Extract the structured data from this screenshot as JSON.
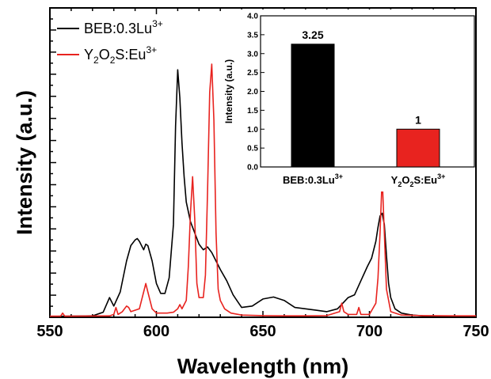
{
  "chart_data": [
    {
      "type": "line",
      "title": "",
      "xlabel": "Wavelength (nm)",
      "ylabel": "Intensity (a.u.)",
      "xlim": [
        550,
        750
      ],
      "ylim": [
        0,
        1.1
      ],
      "y_tick_labels_shown": false,
      "x_ticks": [
        550,
        600,
        650,
        700,
        750
      ],
      "x_tick_labels": [
        "550",
        "600",
        "650",
        "700",
        "750"
      ],
      "legend_position": "top-left",
      "series": [
        {
          "name": "BEB:0.3Lu3+",
          "legend_base": "BEB:0.3Lu",
          "legend_sup": "3+",
          "color": "#000000",
          "x": [
            550,
            570,
            575,
            578,
            580,
            583,
            586,
            588,
            590,
            591,
            592,
            594,
            595,
            596,
            598,
            600,
            602,
            604,
            606,
            608,
            609,
            610,
            611,
            612,
            613,
            614,
            616,
            618,
            620,
            622,
            624,
            626,
            628,
            630,
            633,
            636,
            640,
            645,
            650,
            655,
            660,
            665,
            670,
            675,
            680,
            685,
            690,
            693,
            696,
            699,
            701,
            703,
            704,
            705,
            706,
            707,
            708,
            709,
            710,
            712,
            715,
            720,
            725,
            730,
            740,
            750
          ],
          "y": [
            0.003,
            0.005,
            0.018,
            0.07,
            0.04,
            0.09,
            0.2,
            0.255,
            0.275,
            0.28,
            0.27,
            0.24,
            0.26,
            0.255,
            0.2,
            0.12,
            0.085,
            0.085,
            0.14,
            0.33,
            0.68,
            0.88,
            0.78,
            0.62,
            0.5,
            0.41,
            0.34,
            0.3,
            0.26,
            0.24,
            0.25,
            0.23,
            0.2,
            0.17,
            0.13,
            0.08,
            0.035,
            0.04,
            0.065,
            0.072,
            0.06,
            0.035,
            0.03,
            0.025,
            0.02,
            0.03,
            0.07,
            0.08,
            0.13,
            0.18,
            0.21,
            0.27,
            0.32,
            0.36,
            0.37,
            0.33,
            0.22,
            0.12,
            0.07,
            0.03,
            0.015,
            0.008,
            0.005,
            0.004,
            0.003,
            0.003
          ]
        },
        {
          "name": "Y2O2S:Eu3+",
          "legend_base": "Y",
          "legend_parts": [
            "Y",
            "2",
            "O",
            "2",
            "S:Eu",
            "3+"
          ],
          "color": "#e8231f",
          "x": [
            550,
            555,
            556,
            557,
            560,
            578,
            580,
            581,
            582,
            584,
            586,
            587,
            588,
            592,
            594,
            595,
            596,
            598,
            600,
            605,
            608,
            610,
            611,
            612,
            614,
            615,
            616,
            617,
            618,
            619,
            620,
            622,
            623,
            624,
            625,
            626,
            627,
            628,
            629,
            630,
            632,
            635,
            640,
            650,
            660,
            670,
            680,
            686,
            687,
            688,
            690,
            694,
            695,
            696,
            700,
            703,
            704,
            705,
            706,
            707,
            708,
            710,
            715,
            725,
            740,
            750
          ],
          "y": [
            0.004,
            0.004,
            0.015,
            0.004,
            0.004,
            0.005,
            0.01,
            0.035,
            0.01,
            0.02,
            0.04,
            0.035,
            0.02,
            0.03,
            0.09,
            0.12,
            0.09,
            0.03,
            0.015,
            0.015,
            0.018,
            0.03,
            0.045,
            0.03,
            0.06,
            0.18,
            0.37,
            0.5,
            0.35,
            0.12,
            0.07,
            0.07,
            0.15,
            0.45,
            0.8,
            0.9,
            0.7,
            0.3,
            0.1,
            0.06,
            0.03,
            0.015,
            0.008,
            0.006,
            0.005,
            0.005,
            0.006,
            0.02,
            0.05,
            0.02,
            0.01,
            0.01,
            0.035,
            0.01,
            0.01,
            0.05,
            0.14,
            0.3,
            0.5,
            0.3,
            0.1,
            0.02,
            0.008,
            0.006,
            0.005,
            0.005
          ]
        }
      ]
    },
    {
      "type": "bar",
      "title": "",
      "ylabel": "Intensity (a.u.)",
      "ylim": [
        0,
        4.0
      ],
      "y_ticks": [
        0.0,
        0.5,
        1.0,
        1.5,
        2.0,
        2.5,
        3.0,
        3.5,
        4.0
      ],
      "y_tick_labels": [
        "0.0",
        "0.5",
        "1.0",
        "1.5",
        "2.0",
        "2.5",
        "3.0",
        "3.5",
        "4.0"
      ],
      "categories": [
        "BEB:0.3Lu3+",
        "Y2O2S:Eu3+"
      ],
      "values": [
        3.25,
        1
      ],
      "data_labels": [
        "3.25",
        "1"
      ],
      "bar_colors": [
        "#000000",
        "#e8231f"
      ]
    }
  ]
}
